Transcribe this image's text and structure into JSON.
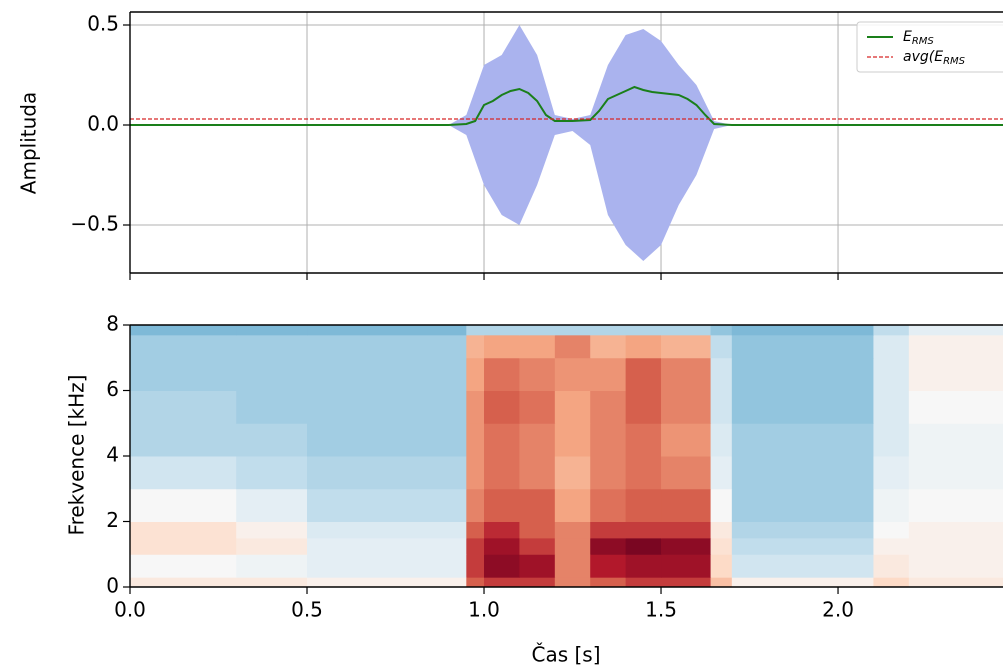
{
  "chart_data": [
    {
      "type": "line",
      "ylabel": "Amplituda",
      "xlim": [
        0,
        2.466
      ],
      "ylim": [
        -0.74,
        0.565
      ],
      "xticks": [
        0,
        0.5,
        1,
        1.5,
        2
      ],
      "yticks": [
        {
          "value": -0.5,
          "label": "−0.5"
        },
        {
          "value": 0,
          "label": "0.0"
        },
        {
          "value": 0.5,
          "label": "0.5"
        }
      ],
      "grid": true,
      "legend": "upper right",
      "envelope": {
        "color": "#aab3ee",
        "x": [
          0,
          0.9,
          0.95,
          1.0,
          1.05,
          1.1,
          1.15,
          1.2,
          1.25,
          1.3,
          1.35,
          1.4,
          1.45,
          1.5,
          1.55,
          1.6,
          1.65,
          1.7,
          2.466
        ],
        "upper": [
          0,
          0,
          0.05,
          0.3,
          0.35,
          0.5,
          0.35,
          0.05,
          0.03,
          0.05,
          0.3,
          0.45,
          0.48,
          0.42,
          0.3,
          0.2,
          0.02,
          0,
          0
        ],
        "lower": [
          0,
          0,
          -0.05,
          -0.3,
          -0.45,
          -0.5,
          -0.3,
          -0.05,
          -0.03,
          -0.1,
          -0.45,
          -0.6,
          -0.68,
          -0.6,
          -0.4,
          -0.25,
          -0.02,
          0,
          0
        ]
      },
      "series": [
        {
          "name": "E_RMS",
          "color": "#1a7f1a",
          "style": "solid",
          "x": [
            0,
            0.9,
            0.95,
            0.975,
            1.0,
            1.025,
            1.05,
            1.075,
            1.1,
            1.125,
            1.15,
            1.175,
            1.2,
            1.25,
            1.3,
            1.325,
            1.35,
            1.375,
            1.4,
            1.425,
            1.45,
            1.475,
            1.5,
            1.525,
            1.55,
            1.575,
            1.6,
            1.625,
            1.65,
            1.7,
            2.466
          ],
          "values": [
            0,
            0,
            0.005,
            0.02,
            0.1,
            0.12,
            0.15,
            0.17,
            0.18,
            0.16,
            0.12,
            0.05,
            0.02,
            0.02,
            0.025,
            0.07,
            0.13,
            0.15,
            0.17,
            0.19,
            0.175,
            0.165,
            0.16,
            0.155,
            0.15,
            0.13,
            0.1,
            0.05,
            0.005,
            0,
            0
          ]
        },
        {
          "name": "avg(E_RMS",
          "color": "#d62728",
          "style": "dashed",
          "x": [
            0,
            2.466
          ],
          "values": [
            0.03,
            0.03
          ]
        }
      ]
    },
    {
      "type": "heatmap",
      "xlabel": "Čas [s]",
      "ylabel": "Frekvence [kHz]",
      "xlim": [
        0,
        2.466
      ],
      "ylim": [
        0,
        8
      ],
      "xticks": [
        {
          "value": 0,
          "label": "0.0"
        },
        {
          "value": 0.5,
          "label": "0.5"
        },
        {
          "value": 1,
          "label": "1.0"
        },
        {
          "value": 1.5,
          "label": "1.5"
        },
        {
          "value": 2,
          "label": "2.0"
        }
      ],
      "yticks": [
        0,
        2,
        4,
        6,
        8
      ],
      "colormap": "RdBu_r",
      "zlim": [
        -1,
        1
      ],
      "x_edges": [
        0,
        0.3,
        0.5,
        0.95,
        1.0,
        1.1,
        1.2,
        1.3,
        1.4,
        1.5,
        1.64,
        1.7,
        2.1,
        2.2,
        2.466
      ],
      "y_edges": [
        0,
        0.3,
        1,
        1.5,
        2,
        3,
        4,
        5,
        6,
        7,
        7.7,
        8
      ],
      "z": [
        [
          0.1,
          0.1,
          0.05,
          0.6,
          0.7,
          0.7,
          0.5,
          0.6,
          0.7,
          0.7,
          0.3,
          0.05,
          0.2,
          0.1
        ],
        [
          0.0,
          -0.05,
          -0.1,
          0.7,
          0.9,
          0.85,
          0.5,
          0.8,
          0.85,
          0.85,
          0.2,
          -0.2,
          0.1,
          0.05
        ],
        [
          0.15,
          0.1,
          -0.1,
          0.7,
          0.85,
          0.7,
          0.5,
          0.9,
          0.95,
          0.9,
          0.15,
          -0.25,
          0.05,
          0.05
        ],
        [
          0.15,
          0.05,
          -0.15,
          0.6,
          0.75,
          0.6,
          0.5,
          0.7,
          0.7,
          0.7,
          0.1,
          -0.3,
          0.0,
          0.05
        ],
        [
          0.0,
          -0.1,
          -0.25,
          0.5,
          0.6,
          0.6,
          0.4,
          0.55,
          0.6,
          0.6,
          0.0,
          -0.35,
          -0.05,
          0.0
        ],
        [
          -0.2,
          -0.25,
          -0.3,
          0.45,
          0.55,
          0.5,
          0.35,
          0.5,
          0.55,
          0.5,
          -0.1,
          -0.35,
          -0.1,
          -0.05
        ],
        [
          -0.3,
          -0.3,
          -0.35,
          0.45,
          0.55,
          0.5,
          0.4,
          0.5,
          0.55,
          0.45,
          -0.15,
          -0.35,
          -0.15,
          -0.05
        ],
        [
          -0.3,
          -0.35,
          -0.35,
          0.45,
          0.6,
          0.55,
          0.4,
          0.5,
          0.6,
          0.5,
          -0.2,
          -0.4,
          -0.15,
          0.0
        ],
        [
          -0.35,
          -0.35,
          -0.35,
          0.4,
          0.55,
          0.5,
          0.45,
          0.45,
          0.6,
          0.5,
          -0.2,
          -0.4,
          -0.15,
          0.05
        ],
        [
          -0.35,
          -0.35,
          -0.35,
          0.35,
          0.4,
          0.4,
          0.5,
          0.35,
          0.4,
          0.35,
          -0.25,
          -0.4,
          -0.15,
          0.05
        ],
        [
          -0.45,
          -0.45,
          -0.45,
          -0.3,
          -0.3,
          -0.3,
          -0.3,
          -0.3,
          -0.3,
          -0.3,
          -0.4,
          -0.45,
          -0.25,
          -0.1
        ]
      ]
    }
  ]
}
